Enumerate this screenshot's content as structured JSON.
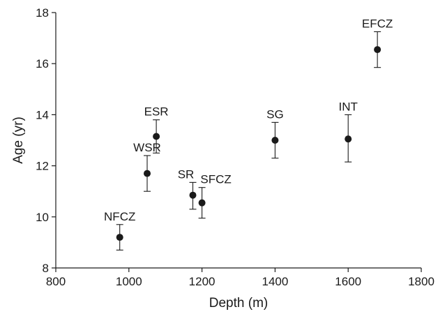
{
  "chart_data": {
    "type": "scatter",
    "title": "",
    "xlabel": "Depth (m)",
    "ylabel": "Age (yr)",
    "xlim": [
      800,
      1800
    ],
    "ylim": [
      8,
      18
    ],
    "x_ticks": [
      800,
      1000,
      1200,
      1400,
      1600,
      1800
    ],
    "y_ticks": [
      8,
      10,
      12,
      14,
      16,
      18
    ],
    "grid": false,
    "legend": "none",
    "error_bars": true,
    "marker_color": "#1a1a1a",
    "points": [
      {
        "label": "NFCZ",
        "x": 975,
        "y": 9.2,
        "y_low": 8.7,
        "y_high": 9.7
      },
      {
        "label": "WSR",
        "x": 1050,
        "y": 11.7,
        "y_low": 11.0,
        "y_high": 12.4
      },
      {
        "label": "ESR",
        "x": 1075,
        "y": 13.15,
        "y_low": 12.5,
        "y_high": 13.8
      },
      {
        "label": "SR",
        "x": 1175,
        "y": 10.85,
        "y_low": 10.3,
        "y_high": 11.35
      },
      {
        "label": "SFCZ",
        "x": 1200,
        "y": 10.55,
        "y_low": 9.95,
        "y_high": 11.15
      },
      {
        "label": "SG",
        "x": 1400,
        "y": 13.0,
        "y_low": 12.3,
        "y_high": 13.7
      },
      {
        "label": "INT",
        "x": 1600,
        "y": 13.05,
        "y_low": 12.15,
        "y_high": 14.0
      },
      {
        "label": "EFCZ",
        "x": 1680,
        "y": 16.55,
        "y_low": 15.85,
        "y_high": 17.25
      }
    ]
  }
}
